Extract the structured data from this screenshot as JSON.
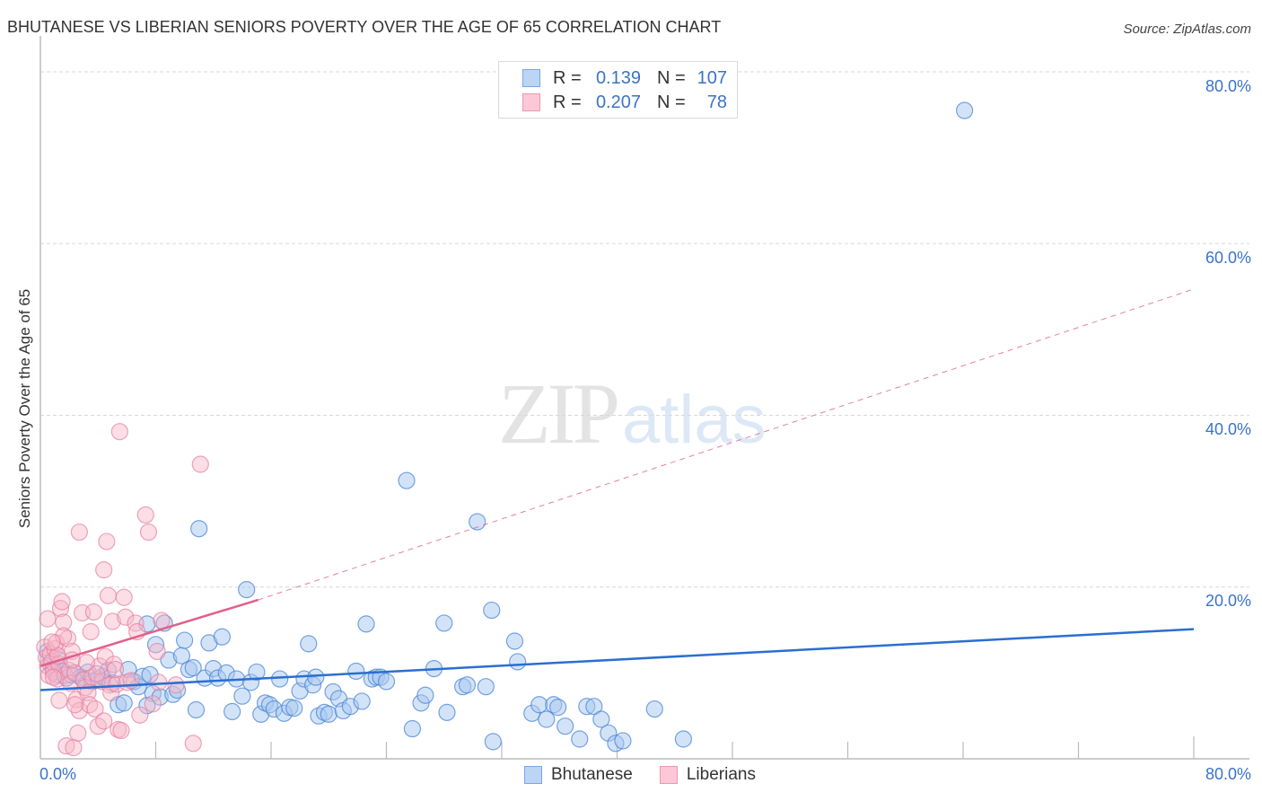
{
  "header": {
    "title": "BHUTANESE VS LIBERIAN SENIORS POVERTY OVER THE AGE OF 65 CORRELATION CHART",
    "source": "Source: ZipAtlas.com"
  },
  "watermark": {
    "zip": "ZIP",
    "atlas": "atlas"
  },
  "axes": {
    "ylabel": "Seniors Poverty Over the Age of 65",
    "y_ticks": [
      "80.0%",
      "60.0%",
      "40.0%",
      "20.0%"
    ],
    "x_min_label": "0.0%",
    "x_max_label": "80.0%"
  },
  "legend_top": {
    "rows": [
      {
        "r_label": "R =",
        "r_value": "0.139",
        "n_label": "N =",
        "n_value": "107",
        "color": "#a8c8f0",
        "border": "#6fa0e0"
      },
      {
        "r_label": "R =",
        "r_value": "0.207",
        "n_label": "N =",
        "n_value": "78",
        "color": "#f9c0d0",
        "border": "#e890aa"
      }
    ]
  },
  "legend_bottom": {
    "items": [
      {
        "label": "Bhutanese",
        "color": "#a8c8f0",
        "border": "#6fa0e0"
      },
      {
        "label": "Liberians",
        "color": "#f9c0d0",
        "border": "#e890aa"
      }
    ]
  },
  "colors": {
    "blue_fill": "#a8c8f0",
    "blue_stroke": "#4a86d8",
    "blue_line": "#2a6fd0",
    "pink_fill": "#f7b6c8",
    "pink_stroke": "#e57f9f",
    "pink_line": "#e0608a",
    "axis_text": "#3b73c9",
    "grid": "#d8d8d8"
  },
  "chart_data": {
    "type": "scatter",
    "title": "BHUTANESE VS LIBERIAN SENIORS POVERTY OVER THE AGE OF 65 CORRELATION CHART",
    "xlabel": "",
    "ylabel": "Seniors Poverty Over the Age of 65",
    "xlim": [
      0,
      80
    ],
    "ylim": [
      0,
      80
    ],
    "x_tick_labels": [
      "0.0%",
      "80.0%"
    ],
    "y_tick_labels": [
      "20.0%",
      "40.0%",
      "60.0%",
      "80.0%"
    ],
    "grid": true,
    "legend_position": "bottom-center",
    "series": [
      {
        "name": "Bhutanese",
        "R": 0.139,
        "N": 107,
        "trend": {
          "x": [
            0,
            80
          ],
          "y": [
            8.0,
            15.1
          ],
          "style": "solid"
        },
        "points": [
          [
            0.5,
            12.5
          ],
          [
            0.7,
            11.0
          ],
          [
            0.9,
            10.5
          ],
          [
            1.1,
            9.8
          ],
          [
            1.3,
            11.5
          ],
          [
            1.6,
            10.2
          ],
          [
            1.8,
            9.4
          ],
          [
            2.1,
            9.8
          ],
          [
            2.4,
            10.0
          ],
          [
            2.8,
            9.5
          ],
          [
            3.0,
            9.2
          ],
          [
            3.3,
            10.1
          ],
          [
            3.6,
            9.0
          ],
          [
            4.0,
            9.3
          ],
          [
            4.3,
            9.6
          ],
          [
            4.7,
            10.3
          ],
          [
            5.0,
            8.8
          ],
          [
            5.4,
            6.3
          ],
          [
            5.8,
            6.5
          ],
          [
            6.1,
            10.4
          ],
          [
            6.5,
            9.0
          ],
          [
            6.8,
            8.4
          ],
          [
            7.1,
            9.6
          ],
          [
            7.4,
            15.7
          ],
          [
            7.6,
            9.8
          ],
          [
            7.8,
            7.6
          ],
          [
            7.4,
            6.2
          ],
          [
            8.0,
            13.3
          ],
          [
            8.3,
            7.2
          ],
          [
            8.6,
            15.8
          ],
          [
            8.9,
            11.5
          ],
          [
            9.2,
            7.5
          ],
          [
            9.5,
            8.0
          ],
          [
            9.8,
            12.0
          ],
          [
            10.0,
            13.8
          ],
          [
            10.3,
            10.4
          ],
          [
            10.6,
            10.6
          ],
          [
            10.8,
            5.7
          ],
          [
            11.0,
            26.8
          ],
          [
            11.4,
            9.4
          ],
          [
            11.7,
            13.5
          ],
          [
            12.0,
            10.5
          ],
          [
            12.3,
            9.4
          ],
          [
            12.6,
            14.2
          ],
          [
            12.9,
            10.0
          ],
          [
            13.3,
            5.5
          ],
          [
            13.6,
            9.3
          ],
          [
            14.0,
            7.3
          ],
          [
            14.3,
            19.7
          ],
          [
            14.6,
            8.9
          ],
          [
            15.0,
            10.1
          ],
          [
            15.3,
            5.2
          ],
          [
            15.6,
            6.5
          ],
          [
            15.9,
            6.3
          ],
          [
            16.2,
            5.8
          ],
          [
            16.6,
            9.3
          ],
          [
            16.9,
            5.3
          ],
          [
            17.3,
            6.0
          ],
          [
            17.6,
            5.9
          ],
          [
            18.0,
            7.9
          ],
          [
            18.3,
            9.3
          ],
          [
            18.6,
            13.4
          ],
          [
            18.9,
            8.6
          ],
          [
            19.1,
            9.5
          ],
          [
            19.3,
            5.0
          ],
          [
            19.7,
            5.4
          ],
          [
            20.0,
            5.2
          ],
          [
            20.3,
            7.8
          ],
          [
            20.7,
            7.0
          ],
          [
            21.0,
            5.6
          ],
          [
            21.5,
            6.1
          ],
          [
            21.9,
            10.2
          ],
          [
            22.3,
            6.7
          ],
          [
            22.6,
            15.7
          ],
          [
            23.0,
            9.3
          ],
          [
            23.3,
            9.5
          ],
          [
            23.6,
            9.5
          ],
          [
            24.0,
            9.0
          ],
          [
            25.4,
            32.4
          ],
          [
            25.8,
            3.5
          ],
          [
            26.4,
            6.5
          ],
          [
            26.7,
            7.4
          ],
          [
            27.3,
            10.5
          ],
          [
            28.0,
            15.8
          ],
          [
            28.2,
            5.4
          ],
          [
            29.3,
            8.4
          ],
          [
            29.6,
            8.6
          ],
          [
            30.3,
            27.6
          ],
          [
            30.9,
            8.4
          ],
          [
            31.3,
            17.3
          ],
          [
            31.4,
            2.0
          ],
          [
            32.9,
            13.7
          ],
          [
            33.1,
            11.3
          ],
          [
            34.1,
            5.3
          ],
          [
            34.6,
            6.3
          ],
          [
            35.1,
            4.6
          ],
          [
            35.6,
            6.3
          ],
          [
            35.9,
            6.0
          ],
          [
            36.4,
            3.8
          ],
          [
            37.4,
            2.3
          ],
          [
            37.9,
            6.1
          ],
          [
            38.4,
            6.1
          ],
          [
            38.9,
            4.6
          ],
          [
            39.4,
            3.0
          ],
          [
            39.9,
            1.8
          ],
          [
            40.4,
            2.1
          ],
          [
            42.6,
            5.8
          ],
          [
            44.6,
            2.3
          ],
          [
            64.1,
            75.5
          ]
        ]
      },
      {
        "name": "Liberians",
        "R": 0.207,
        "N": 78,
        "trend_solid": {
          "x": [
            0,
            15.1
          ],
          "y": [
            10.8,
            18.5
          ],
          "style": "solid"
        },
        "trend_dashed": {
          "x": [
            15.1,
            80
          ],
          "y": [
            18.5,
            54.7
          ],
          "style": "dashed"
        },
        "points": [
          [
            0.3,
            13.0
          ],
          [
            0.4,
            11.8
          ],
          [
            0.5,
            10.8
          ],
          [
            0.5,
            16.3
          ],
          [
            0.6,
            9.7
          ],
          [
            0.7,
            12.2
          ],
          [
            0.8,
            11.3
          ],
          [
            0.9,
            10.1
          ],
          [
            1.0,
            12.8
          ],
          [
            1.1,
            13.5
          ],
          [
            1.2,
            9.3
          ],
          [
            1.3,
            11.0
          ],
          [
            1.3,
            6.8
          ],
          [
            1.4,
            17.5
          ],
          [
            1.5,
            18.3
          ],
          [
            1.6,
            15.9
          ],
          [
            1.7,
            9.7
          ],
          [
            1.8,
            1.5
          ],
          [
            1.9,
            14.0
          ],
          [
            2.0,
            10.3
          ],
          [
            2.1,
            8.8
          ],
          [
            2.2,
            12.5
          ],
          [
            2.3,
            1.3
          ],
          [
            2.4,
            10.0
          ],
          [
            2.5,
            6.9
          ],
          [
            2.6,
            3.0
          ],
          [
            2.7,
            5.6
          ],
          [
            2.9,
            17.0
          ],
          [
            2.7,
            26.4
          ],
          [
            3.0,
            9.2
          ],
          [
            3.1,
            8.3
          ],
          [
            3.3,
            7.7
          ],
          [
            3.4,
            6.3
          ],
          [
            3.5,
            14.8
          ],
          [
            3.6,
            9.5
          ],
          [
            3.7,
            17.1
          ],
          [
            3.8,
            5.8
          ],
          [
            4.0,
            3.8
          ],
          [
            4.1,
            10.8
          ],
          [
            4.3,
            9.0
          ],
          [
            4.4,
            22.0
          ],
          [
            4.4,
            4.4
          ],
          [
            4.5,
            11.9
          ],
          [
            4.6,
            25.3
          ],
          [
            4.7,
            19.0
          ],
          [
            4.8,
            8.6
          ],
          [
            4.9,
            7.7
          ],
          [
            5.0,
            16.0
          ],
          [
            5.1,
            11.0
          ],
          [
            5.3,
            8.7
          ],
          [
            5.4,
            3.4
          ],
          [
            5.6,
            3.3
          ],
          [
            5.5,
            38.1
          ],
          [
            5.8,
            18.8
          ],
          [
            5.9,
            16.5
          ],
          [
            6.0,
            8.9
          ],
          [
            6.3,
            9.1
          ],
          [
            6.6,
            15.8
          ],
          [
            6.9,
            5.1
          ],
          [
            7.3,
            28.4
          ],
          [
            7.5,
            26.4
          ],
          [
            7.8,
            6.4
          ],
          [
            8.1,
            12.5
          ],
          [
            8.4,
            16.1
          ],
          [
            9.4,
            8.6
          ],
          [
            10.6,
            1.8
          ],
          [
            11.1,
            34.3
          ],
          [
            8.2,
            8.9
          ],
          [
            1.2,
            12.0
          ],
          [
            0.9,
            9.5
          ],
          [
            2.2,
            11.5
          ],
          [
            3.2,
            11.2
          ],
          [
            1.6,
            14.3
          ],
          [
            3.9,
            9.9
          ],
          [
            2.4,
            6.3
          ],
          [
            6.7,
            14.8
          ],
          [
            0.8,
            13.6
          ],
          [
            5.2,
            10.4
          ]
        ]
      }
    ]
  }
}
